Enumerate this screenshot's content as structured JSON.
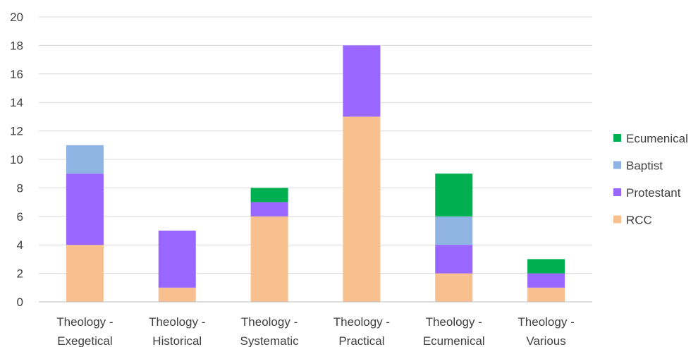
{
  "chart_data": {
    "type": "bar",
    "stacked": true,
    "title": "",
    "xlabel": "",
    "ylabel": "",
    "ylim": [
      0,
      20
    ],
    "yticks": [
      0,
      2,
      4,
      6,
      8,
      10,
      12,
      14,
      16,
      18,
      20
    ],
    "grid": true,
    "legend_position": "right",
    "categories": [
      [
        "Theology -",
        "Exegetical"
      ],
      [
        "Theology -",
        "Historical"
      ],
      [
        "Theology -",
        "Systematic"
      ],
      [
        "Theology -",
        "Practical"
      ],
      [
        "Theology -",
        "Ecumenical"
      ],
      [
        "Theology -",
        "Various"
      ]
    ],
    "series": [
      {
        "name": "RCC",
        "color": "#f8c08f",
        "values": [
          4,
          1,
          6,
          13,
          2,
          1
        ]
      },
      {
        "name": "Protestant",
        "color": "#9966ff",
        "values": [
          5,
          4,
          1,
          5,
          2,
          1
        ]
      },
      {
        "name": "Baptist",
        "color": "#8fb4e3",
        "values": [
          2,
          0,
          0,
          0,
          2,
          0
        ]
      },
      {
        "name": "Ecumenical",
        "color": "#00b050",
        "values": [
          0,
          0,
          1,
          0,
          3,
          1
        ]
      }
    ]
  }
}
